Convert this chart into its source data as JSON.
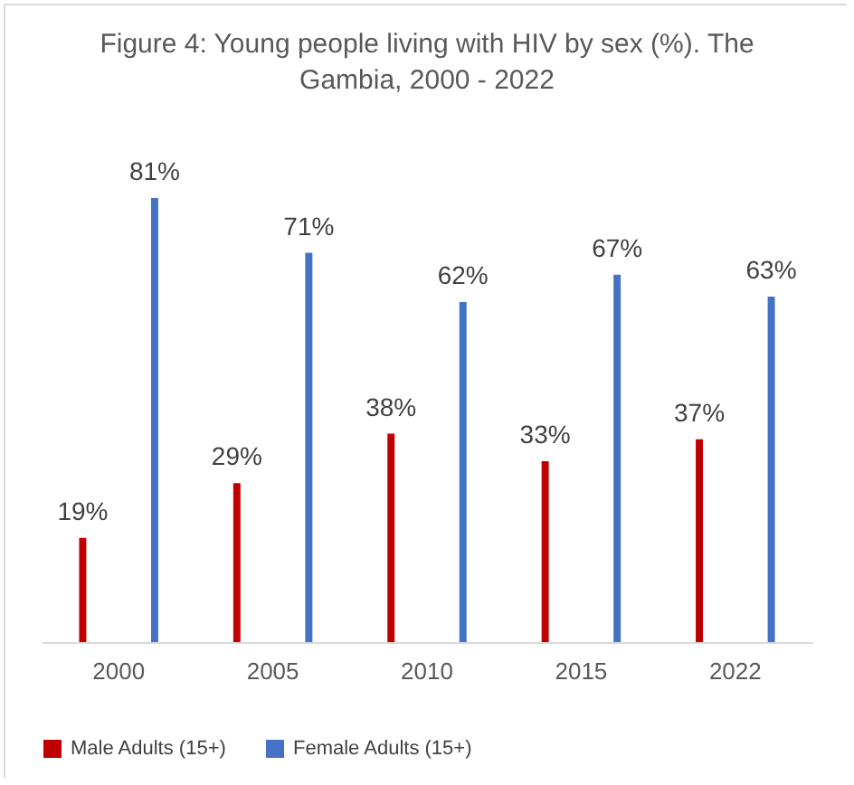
{
  "chart_data": {
    "type": "bar",
    "title": "Figure 4: Young people living with HIV by sex (%). The Gambia, 2000 - 2022",
    "categories": [
      "2000",
      "2005",
      "2010",
      "2015",
      "2022"
    ],
    "series": [
      {
        "name": "Male Adults (15+)",
        "color": "#c00000",
        "values": [
          19,
          29,
          38,
          33,
          37
        ],
        "value_labels": [
          "19%",
          "29%",
          "38%",
          "33%",
          "37%"
        ]
      },
      {
        "name": "Female Adults (15+)",
        "color": "#4472c4",
        "values": [
          81,
          71,
          62,
          67,
          63
        ],
        "value_labels": [
          "81%",
          "71%",
          "62%",
          "67%",
          "63%"
        ]
      }
    ],
    "legend": "bottom"
  }
}
